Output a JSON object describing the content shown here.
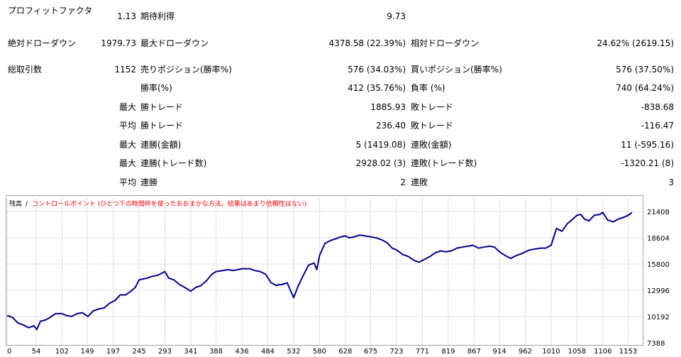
{
  "stats": {
    "profit_factor": {
      "label": "プロフィットファクタ",
      "value": "1.13"
    },
    "expected_payoff": {
      "label": "期待利得",
      "value": "9.73"
    },
    "abs_drawdown": {
      "label": "絶対ドローダウン",
      "value": "1979.73"
    },
    "max_drawdown": {
      "label": "最大ドローダウン",
      "value": "4378.58 (22.39%)"
    },
    "rel_drawdown": {
      "label": "相対ドローダウン",
      "value": "24.62% (2619.15)"
    },
    "total_trades": {
      "label": "総取引数",
      "value": "1152"
    },
    "short_positions": {
      "label": "売りポジション(勝率%)",
      "value": "576 (34.03%)"
    },
    "long_positions": {
      "label": "買いポジション(勝率%)",
      "value": "576 (37.50%)"
    },
    "win_rate": {
      "label": "勝率(%)",
      "value": "412 (35.76%)"
    },
    "loss_rate": {
      "label": "負率 (%)",
      "value": "740 (64.24%)"
    },
    "max_profit_trade": {
      "prefix": "最大",
      "label": "勝トレード",
      "value": "1885.93"
    },
    "max_loss_trade": {
      "label": "敗トレード",
      "value": "-838.68"
    },
    "avg_profit_trade": {
      "prefix": "平均",
      "label": "勝トレード",
      "value": "236.40"
    },
    "avg_loss_trade": {
      "label": "敗トレード",
      "value": "-116.47"
    },
    "max_consec_wins": {
      "prefix": "最大",
      "label": "連勝(金額)",
      "value": "5 (1419.08)"
    },
    "max_consec_losses": {
      "label": "連敗(金額)",
      "value": "11 (-595.16)"
    },
    "max_consec_profit": {
      "prefix": "最大",
      "label": "連勝(トレード数)",
      "value": "2928.02 (3)"
    },
    "max_consec_loss": {
      "label": "連敗(トレード数)",
      "value": "-1320.21 (8)"
    },
    "avg_consec_wins": {
      "prefix": "平均",
      "label": "連勝",
      "value": "2"
    },
    "avg_consec_losses": {
      "label": "連敗",
      "value": "3"
    }
  },
  "chart_data": {
    "type": "line",
    "title_balance": "残高",
    "title_sep": " / ",
    "title_note": "コントロールポイント (ひとつ下の時間枠を使ったおおまかな方法。結果はあまり信頼性はない)",
    "colors": {
      "line": "#00008b",
      "grid": "#a0a0a0",
      "note": "#ff0000"
    },
    "x_ticks": [
      0,
      54,
      102,
      149,
      197,
      245,
      293,
      341,
      388,
      436,
      484,
      532,
      580,
      628,
      675,
      723,
      771,
      819,
      867,
      914,
      962,
      1010,
      1058,
      1106,
      1153
    ],
    "y_ticks": [
      21408,
      18604,
      15800,
      12996,
      10192,
      7388
    ],
    "xlim": [
      0,
      1180
    ],
    "ylim": [
      7388,
      21408
    ],
    "grid": true,
    "series": [
      {
        "x": [
          0,
          10,
          20,
          30,
          40,
          50,
          55,
          62,
          70,
          80,
          90,
          102,
          110,
          120,
          130,
          140,
          150,
          160,
          170,
          180,
          190,
          200,
          210,
          220,
          230,
          238,
          245,
          252,
          260,
          270,
          280,
          293,
          300,
          310,
          320,
          330,
          341,
          350,
          360,
          370,
          380,
          388,
          400,
          410,
          420,
          436,
          450,
          460,
          470,
          480,
          490,
          500,
          505,
          510,
          520,
          532,
          540,
          550,
          560,
          570,
          575,
          580,
          590,
          600,
          610,
          620,
          628,
          635,
          645,
          655,
          665,
          675,
          685,
          695,
          705,
          715,
          723,
          735,
          745,
          755,
          765,
          775,
          785,
          795,
          805,
          815,
          825,
          835,
          845,
          855,
          865,
          875,
          885,
          895,
          905,
          914,
          925,
          935,
          945,
          955,
          962,
          970,
          980,
          990,
          1000,
          1010,
          1020,
          1030,
          1040,
          1050,
          1058,
          1065,
          1072,
          1080,
          1090,
          1100,
          1106,
          1115,
          1125,
          1135,
          1145,
          1153,
          1160
        ],
        "y": [
          10300,
          10100,
          9500,
          9300,
          9000,
          9200,
          8800,
          9700,
          9800,
          10100,
          10500,
          10500,
          10300,
          10200,
          10500,
          10600,
          10200,
          10800,
          11000,
          11100,
          11600,
          11900,
          12500,
          12500,
          12900,
          13300,
          14100,
          14200,
          14300,
          14500,
          14600,
          15000,
          14300,
          14100,
          13600,
          13300,
          12900,
          13300,
          13500,
          14000,
          14700,
          15000,
          15100,
          15200,
          15100,
          15300,
          15300,
          15100,
          15000,
          14700,
          13800,
          13500,
          13600,
          13600,
          13800,
          12200,
          13400,
          14600,
          15700,
          15900,
          15200,
          16700,
          18000,
          18300,
          18500,
          18700,
          18800,
          18600,
          18700,
          18900,
          18800,
          18700,
          18600,
          18400,
          18100,
          17500,
          17300,
          16800,
          16600,
          16200,
          16000,
          16300,
          16600,
          17000,
          17200,
          17100,
          17200,
          17500,
          17600,
          17700,
          17800,
          17500,
          17600,
          17700,
          17600,
          17100,
          16700,
          16400,
          16700,
          16900,
          17100,
          17300,
          17400,
          17500,
          17500,
          17800,
          19600,
          19300,
          20100,
          20600,
          21000,
          21100,
          20600,
          20400,
          21000,
          21100,
          21300,
          20500,
          20300,
          20600,
          20800,
          21000,
          21300
        ]
      }
    ]
  }
}
